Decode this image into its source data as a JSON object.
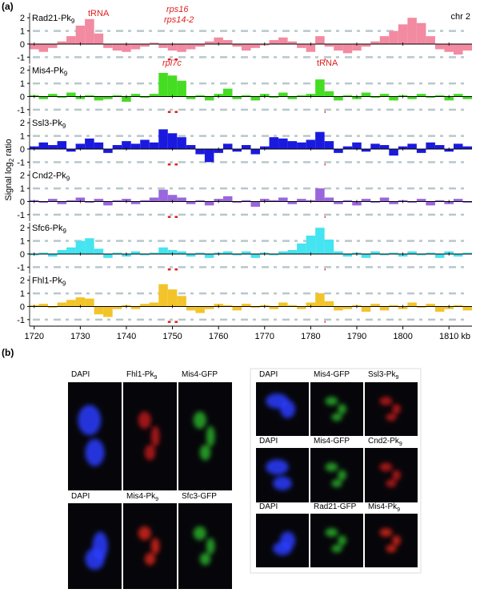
{
  "panel_a_label": "(a)",
  "y_label": {
    "text": "Signal log",
    "sub": "2",
    "after": "ratio"
  },
  "chr": "chr 2",
  "annotations": [
    "tRNA",
    "rps16",
    "rps14-2",
    "rpl7c",
    "tRNA"
  ],
  "chart_data": [
    {
      "type": "bar",
      "title": "Rad21-Pk",
      "title_sub": "9",
      "color": "#f28aa2",
      "x": [
        1720,
        1722,
        1724,
        1726,
        1728,
        1730,
        1732,
        1734,
        1736,
        1738,
        1740,
        1742,
        1744,
        1746,
        1748,
        1750,
        1752,
        1754,
        1756,
        1758,
        1760,
        1762,
        1764,
        1766,
        1768,
        1770,
        1772,
        1774,
        1776,
        1778,
        1780,
        1782,
        1784,
        1786,
        1788,
        1790,
        1792,
        1794,
        1796,
        1798,
        1800,
        1802,
        1804,
        1806,
        1808,
        1810,
        1812,
        1814
      ],
      "values": [
        -0.4,
        -0.6,
        -0.3,
        0.2,
        0.6,
        1.4,
        1.9,
        0.8,
        -0.3,
        -0.5,
        -0.6,
        -0.4,
        -0.2,
        0.1,
        -0.3,
        -0.5,
        -0.6,
        -0.4,
        -0.2,
        0.2,
        0.5,
        0.3,
        -0.2,
        -0.5,
        -0.3,
        -0.1,
        0.3,
        0.5,
        0.2,
        -0.3,
        -0.6,
        0.6,
        -0.2,
        -0.5,
        -0.7,
        -0.5,
        -0.2,
        0.2,
        0.6,
        1.0,
        1.5,
        2.0,
        1.6,
        0.6,
        -0.4,
        -0.6,
        -0.8,
        -0.5
      ],
      "xlim": [
        1719,
        1815
      ],
      "xticks": [
        1720,
        1730,
        1740,
        1750,
        1760,
        1770,
        1780,
        1790,
        1800,
        1810
      ],
      "ylim": [
        -1.5,
        2.5
      ],
      "yticks": [
        -1,
        0,
        1,
        2
      ]
    },
    {
      "type": "bar",
      "title": "Mis4-Pk",
      "title_sub": "9",
      "color": "#44dd22",
      "x": [
        1720,
        1722,
        1724,
        1726,
        1728,
        1730,
        1732,
        1734,
        1736,
        1738,
        1740,
        1742,
        1744,
        1746,
        1748,
        1750,
        1752,
        1754,
        1756,
        1758,
        1760,
        1762,
        1764,
        1766,
        1768,
        1770,
        1772,
        1774,
        1776,
        1778,
        1780,
        1782,
        1784,
        1786,
        1788,
        1790,
        1792,
        1794,
        1796,
        1798,
        1800,
        1802,
        1804,
        1806,
        1808,
        1810,
        1812,
        1814
      ],
      "values": [
        0.1,
        -0.2,
        0.2,
        -0.1,
        0.3,
        -0.2,
        0.1,
        -0.3,
        -0.2,
        0.1,
        -0.4,
        0.2,
        -0.1,
        0.2,
        1.8,
        1.6,
        1.2,
        -0.2,
        0.1,
        -0.3,
        0.2,
        0.6,
        -0.2,
        0.1,
        -0.3,
        0.2,
        -0.1,
        0.3,
        -0.2,
        0.1,
        0.2,
        1.3,
        0.4,
        -0.3,
        0.1,
        -0.2,
        0.3,
        -0.1,
        0.2,
        -0.3,
        0.1,
        -0.2,
        0.2,
        -0.1,
        0.1,
        -0.3,
        0.2,
        -0.2
      ],
      "xlim": [
        1719,
        1815
      ],
      "xticks": [
        1720,
        1730,
        1740,
        1750,
        1760,
        1770,
        1780,
        1790,
        1800,
        1810
      ],
      "ylim": [
        -1.5,
        2.5
      ],
      "yticks": [
        -1,
        0,
        1,
        2
      ]
    },
    {
      "type": "bar",
      "title": "Ssl3-Pk",
      "title_sub": "9",
      "color": "#1a1adf",
      "x": [
        1720,
        1722,
        1724,
        1726,
        1728,
        1730,
        1732,
        1734,
        1736,
        1738,
        1740,
        1742,
        1744,
        1746,
        1748,
        1750,
        1752,
        1754,
        1756,
        1758,
        1760,
        1762,
        1764,
        1766,
        1768,
        1770,
        1772,
        1774,
        1776,
        1778,
        1780,
        1782,
        1784,
        1786,
        1788,
        1790,
        1792,
        1794,
        1796,
        1798,
        1800,
        1802,
        1804,
        1806,
        1808,
        1810,
        1812,
        1814
      ],
      "values": [
        0.2,
        0.5,
        0.3,
        0.6,
        -0.2,
        0.4,
        0.8,
        0.5,
        -0.3,
        0.3,
        0.6,
        0.4,
        0.7,
        0.5,
        1.5,
        1.2,
        0.9,
        0.3,
        -0.4,
        -1.0,
        -0.3,
        0.4,
        -0.2,
        0.3,
        -0.4,
        0.2,
        0.9,
        0.8,
        0.6,
        0.5,
        0.7,
        1.3,
        0.6,
        -0.3,
        0.2,
        0.5,
        -0.2,
        0.4,
        0.3,
        -0.5,
        0.2,
        0.4,
        -0.3,
        0.5,
        0.3,
        -0.2,
        0.4,
        0.2
      ],
      "xlim": [
        1719,
        1815
      ],
      "xticks": [
        1720,
        1730,
        1740,
        1750,
        1760,
        1770,
        1780,
        1790,
        1800,
        1810
      ],
      "ylim": [
        -1.5,
        2.5
      ],
      "yticks": [
        -1,
        0,
        1,
        2
      ]
    },
    {
      "type": "bar",
      "title": "Cnd2-Pk",
      "title_sub": "9",
      "color": "#9a66dd",
      "x": [
        1720,
        1722,
        1724,
        1726,
        1728,
        1730,
        1732,
        1734,
        1736,
        1738,
        1740,
        1742,
        1744,
        1746,
        1748,
        1750,
        1752,
        1754,
        1756,
        1758,
        1760,
        1762,
        1764,
        1766,
        1768,
        1770,
        1772,
        1774,
        1776,
        1778,
        1780,
        1782,
        1784,
        1786,
        1788,
        1790,
        1792,
        1794,
        1796,
        1798,
        1800,
        1802,
        1804,
        1806,
        1808,
        1810,
        1812,
        1814
      ],
      "values": [
        0.1,
        -0.1,
        0.2,
        -0.2,
        0.1,
        0.3,
        -0.1,
        0.2,
        -0.3,
        0.1,
        0.2,
        -0.2,
        0.1,
        0.3,
        0.9,
        0.5,
        0.3,
        -0.2,
        0.1,
        -0.3,
        0.2,
        0.4,
        -0.1,
        0.1,
        -0.4,
        0.2,
        0.1,
        0.3,
        -0.2,
        0.2,
        0.1,
        1.0,
        0.3,
        -0.2,
        0.1,
        -0.3,
        0.2,
        -0.1,
        0.3,
        -0.2,
        0.1,
        -0.1,
        0.2,
        -0.3,
        0.1,
        -0.2,
        0.2,
        -0.1
      ],
      "xlim": [
        1719,
        1815
      ],
      "xticks": [
        1720,
        1730,
        1740,
        1750,
        1760,
        1770,
        1780,
        1790,
        1800,
        1810
      ],
      "ylim": [
        -1.5,
        2.5
      ],
      "yticks": [
        -1,
        0,
        1,
        2
      ]
    },
    {
      "type": "bar",
      "title": "Sfc6-Pk",
      "title_sub": "9",
      "color": "#44e4f0",
      "x": [
        1720,
        1722,
        1724,
        1726,
        1728,
        1730,
        1732,
        1734,
        1736,
        1738,
        1740,
        1742,
        1744,
        1746,
        1748,
        1750,
        1752,
        1754,
        1756,
        1758,
        1760,
        1762,
        1764,
        1766,
        1768,
        1770,
        1772,
        1774,
        1776,
        1778,
        1780,
        1782,
        1784,
        1786,
        1788,
        1790,
        1792,
        1794,
        1796,
        1798,
        1800,
        1802,
        1804,
        1806,
        1808,
        1810,
        1812,
        1814
      ],
      "values": [
        -0.1,
        0.1,
        -0.2,
        0.3,
        0.5,
        1.0,
        1.2,
        0.4,
        -0.3,
        0.1,
        -0.2,
        0.2,
        -0.1,
        0.1,
        0.5,
        0.3,
        0.2,
        -0.2,
        0.1,
        -0.3,
        0.1,
        0.2,
        -0.1,
        0.2,
        -0.3,
        0.1,
        -0.1,
        0.2,
        0.3,
        0.8,
        1.4,
        2.0,
        1.1,
        0.2,
        -0.2,
        0.1,
        -0.3,
        0.2,
        -0.1,
        0.1,
        -0.2,
        0.2,
        -0.1,
        0.1,
        -0.3,
        0.2,
        -0.2,
        0.1
      ],
      "xlim": [
        1719,
        1815
      ],
      "xticks": [
        1720,
        1730,
        1740,
        1750,
        1760,
        1770,
        1780,
        1790,
        1800,
        1810
      ],
      "ylim": [
        -1.5,
        2.5
      ],
      "yticks": [
        -1,
        0,
        1,
        2
      ]
    },
    {
      "type": "bar",
      "title": "Fhl1-Pk",
      "title_sub": "9",
      "color": "#f2c42a",
      "x": [
        1720,
        1722,
        1724,
        1726,
        1728,
        1730,
        1732,
        1734,
        1736,
        1738,
        1740,
        1742,
        1744,
        1746,
        1748,
        1750,
        1752,
        1754,
        1756,
        1758,
        1760,
        1762,
        1764,
        1766,
        1768,
        1770,
        1772,
        1774,
        1776,
        1778,
        1780,
        1782,
        1784,
        1786,
        1788,
        1790,
        1792,
        1794,
        1796,
        1798,
        1800,
        1802,
        1804,
        1806,
        1808,
        1810,
        1812,
        1814
      ],
      "values": [
        0.1,
        0.2,
        -0.1,
        0.3,
        0.5,
        0.7,
        0.6,
        -0.6,
        -0.8,
        -0.2,
        0.1,
        -0.2,
        0.2,
        0.3,
        1.7,
        1.3,
        0.8,
        -0.3,
        -0.5,
        -0.2,
        0.2,
        0.1,
        -0.3,
        0.2,
        -0.1,
        0.1,
        -0.2,
        0.3,
        0.1,
        -0.2,
        0.3,
        1.0,
        0.4,
        -0.3,
        -0.2,
        0.1,
        -0.4,
        0.2,
        -0.3,
        0.1,
        -0.2,
        0.3,
        -0.1,
        0.2,
        -0.4,
        -0.2,
        0.1,
        -0.3
      ],
      "xlim": [
        1719,
        1815
      ],
      "xticks": [
        1720,
        1730,
        1740,
        1750,
        1760,
        1770,
        1780,
        1790,
        1800,
        1810
      ],
      "ylim": [
        -1.5,
        2.5
      ],
      "yticks": [
        -1,
        0,
        1,
        2
      ],
      "xlabel": "kb"
    }
  ],
  "panel_b": {
    "label": "(b)",
    "rows": [
      [
        {
          "text": "DAPI",
          "color": "#2a3cff"
        },
        {
          "text": "Fhl1-Pk",
          "sub": "9",
          "color": "#e02020"
        },
        {
          "text": "Mis4-GFP",
          "color": "#30d030"
        }
      ],
      [
        {
          "text": "DAPI",
          "color": "#2a3cff"
        },
        {
          "text": "Mis4-Pk",
          "sub": "9",
          "color": "#ff2a1a"
        },
        {
          "text": "Sfc3-GFP",
          "color": "#30d030"
        }
      ],
      [
        {
          "text": "DAPI",
          "color": "#2a3cff"
        },
        {
          "text": "Mis4-GFP",
          "color": "#30d030"
        },
        {
          "text": "Ssl3-Pk",
          "sub": "9",
          "color": "#e02020"
        }
      ],
      [
        {
          "text": "DAPI",
          "color": "#2a3cff"
        },
        {
          "text": "Mis4-GFP",
          "color": "#30d030"
        },
        {
          "text": "Cnd2-Pk",
          "sub": "9",
          "color": "#e02020"
        }
      ],
      [
        {
          "text": "DAPI",
          "color": "#2a3cff"
        },
        {
          "text": "Rad21-GFP",
          "color": "#30d030"
        },
        {
          "text": "Mis4-Pk",
          "sub": "9",
          "color": "#ff2a1a"
        }
      ]
    ]
  }
}
